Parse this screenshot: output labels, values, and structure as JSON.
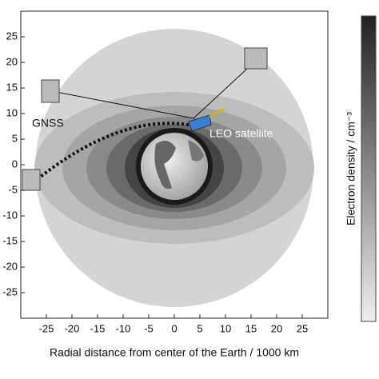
{
  "chart_data": {
    "type": "field-plot",
    "xlabel": "Radial distance from center of the Earth / 1000 km",
    "colorbar_label": "Electron density / cm⁻³",
    "annotations": [
      "GNSS",
      "LEO satellite"
    ],
    "xlim": [
      -30,
      30
    ],
    "ylim": [
      -30,
      30
    ],
    "xticks": [
      -25,
      -20,
      -15,
      -10,
      -5,
      0,
      5,
      10,
      15,
      20,
      25
    ],
    "yticks": [
      -25,
      -20,
      -15,
      -10,
      -5,
      0,
      5,
      10,
      15,
      20,
      25
    ]
  }
}
